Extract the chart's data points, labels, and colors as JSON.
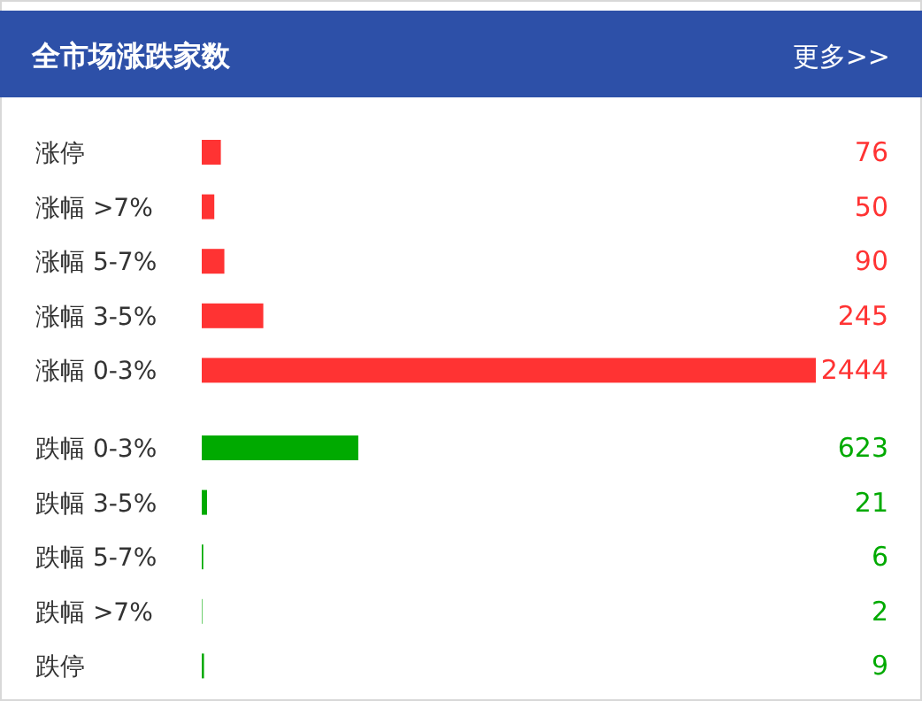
{
  "chart_data": {
    "type": "bar",
    "orientation": "horizontal",
    "title": "全市场涨跌家数",
    "annotations": [
      "更多>>"
    ],
    "categories": [
      "涨停",
      "涨幅 >7%",
      "涨幅 5-7%",
      "涨幅 3-5%",
      "涨幅 0-3%",
      "跌幅 0-3%",
      "跌幅 3-5%",
      "跌幅 5-7%",
      "跌幅 >7%",
      "跌停"
    ],
    "values": [
      76,
      50,
      90,
      245,
      2444,
      623,
      21,
      6,
      2,
      9
    ],
    "colors": [
      "#ff3333",
      "#ff3333",
      "#ff3333",
      "#ff3333",
      "#ff3333",
      "#00aa00",
      "#00aa00",
      "#00aa00",
      "#00aa00",
      "#00aa00"
    ],
    "data_labels": true
  }
}
